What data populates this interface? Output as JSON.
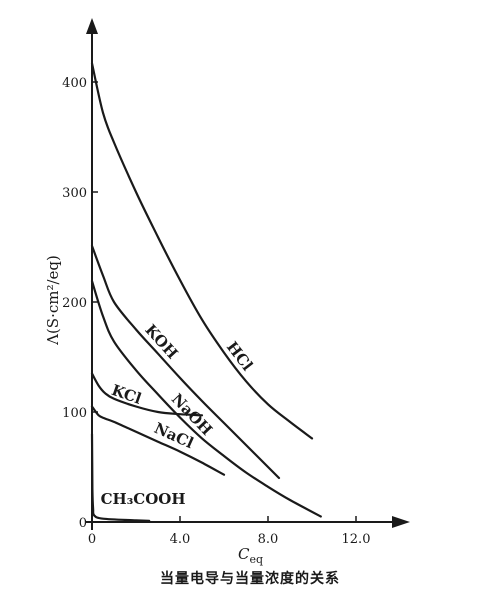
{
  "chart_data": {
    "type": "line",
    "title": "",
    "caption": "当量电导与当量浓度的关系",
    "xlabel": "C_eq",
    "ylabel": "Λ(S·cm²/eq)",
    "xlim": [
      0,
      14
    ],
    "ylim": [
      0,
      440
    ],
    "xticks": [
      0,
      4.0,
      8.0,
      12.0
    ],
    "xtick_labels": [
      "0",
      "4.0",
      "8.0",
      "12.0"
    ],
    "yticks": [
      0,
      100,
      200,
      300,
      400
    ],
    "ytick_labels": [
      "0",
      "100",
      "200",
      "300",
      "400"
    ],
    "grid": false,
    "legend": "none",
    "series": [
      {
        "name": "HCl",
        "x": [
          0,
          0.5,
          1,
          2,
          3,
          4,
          5,
          6,
          7,
          8,
          9,
          10
        ],
        "y": [
          417,
          372,
          345,
          300,
          259,
          220,
          184,
          154,
          128,
          107,
          91,
          76
        ]
      },
      {
        "name": "KOH",
        "x": [
          0,
          0.5,
          1,
          2,
          3,
          4,
          5,
          6,
          7,
          8,
          8.5
        ],
        "y": [
          251,
          224,
          200,
          175,
          153,
          131,
          110,
          90,
          70,
          50,
          40
        ]
      },
      {
        "name": "NaOH",
        "x": [
          0,
          0.5,
          1,
          2,
          3,
          4,
          5,
          6,
          7,
          8,
          9,
          10.4
        ],
        "y": [
          219,
          187,
          164,
          138,
          116,
          95,
          76,
          60,
          45,
          32,
          20,
          5
        ]
      },
      {
        "name": "KCl",
        "x": [
          0,
          0.3,
          0.6,
          1,
          2,
          3,
          4,
          5
        ],
        "y": [
          135,
          124,
          117,
          112,
          105,
          100,
          98,
          97
        ]
      },
      {
        "name": "NaCl",
        "x": [
          0,
          0.3,
          0.6,
          1,
          2,
          3,
          4,
          5,
          6
        ],
        "y": [
          105,
          97,
          94,
          91,
          82,
          73,
          64,
          54,
          43
        ]
      },
      {
        "name": "CH₃COOH",
        "x": [
          0,
          0.02,
          0.05,
          0.1,
          0.5,
          2,
          2.6
        ],
        "y": [
          80,
          30,
          12,
          6,
          3,
          1.5,
          1
        ]
      }
    ]
  }
}
